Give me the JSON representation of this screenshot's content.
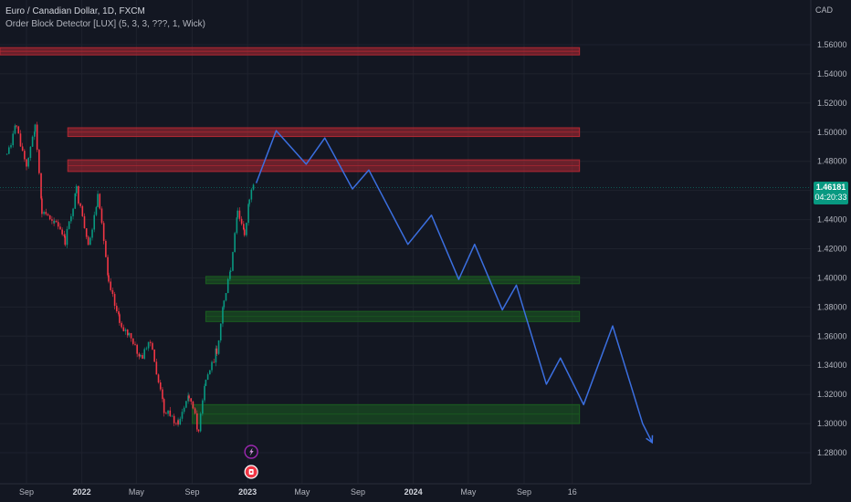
{
  "header": {
    "symbol": "Euro / Canadian Dollar, 1D, FXCM",
    "indicator": "Order Block Detector [LUX] (5, 3, 3, ???, 1, Wick)"
  },
  "currency": "CAD",
  "last_price": {
    "price": "1.46181",
    "countdown": "04:20:33"
  },
  "colors": {
    "background": "#131722",
    "bearish_zone": "#b22833",
    "bullish_zone": "#1b5e20",
    "projection": "#3b6fe0",
    "candle_up": "#089981",
    "candle_down": "#f23645"
  },
  "chart_data": {
    "type": "candlestick",
    "y_axis": {
      "range": [
        1.27,
        1.575
      ],
      "ticks": [
        "1.28000",
        "1.30000",
        "1.32000",
        "1.34000",
        "1.36000",
        "1.38000",
        "1.40000",
        "1.42000",
        "1.44000",
        "1.46000",
        "1.48000",
        "1.50000",
        "1.52000",
        "1.54000",
        "1.56000"
      ]
    },
    "x_axis": {
      "ticks": [
        {
          "label": "Sep",
          "date": "2021-09"
        },
        {
          "label": "2022",
          "date": "2022-01",
          "bold": true
        },
        {
          "label": "May",
          "date": "2022-05"
        },
        {
          "label": "Sep",
          "date": "2022-09"
        },
        {
          "label": "2023",
          "date": "2023-01",
          "bold": true
        },
        {
          "label": "May",
          "date": "2023-05"
        },
        {
          "label": "Sep",
          "date": "2023-09"
        },
        {
          "label": "2024",
          "date": "2024-01",
          "bold": true
        },
        {
          "label": "May",
          "date": "2024-05"
        },
        {
          "label": "Sep",
          "date": "2024-09"
        },
        {
          "label": "16",
          "date": "2024-12-16"
        }
      ]
    },
    "bearish_order_blocks": [
      {
        "from_date": "2021-07",
        "to_date": "2025-01",
        "top": 1.558,
        "bottom": 1.553
      },
      {
        "from_date": "2021-12",
        "to_date": "2025-01",
        "top": 1.503,
        "bottom": 1.497
      },
      {
        "from_date": "2021-12",
        "to_date": "2025-01",
        "top": 1.481,
        "bottom": 1.473
      }
    ],
    "bullish_order_blocks": [
      {
        "from_date": "2022-10",
        "to_date": "2025-01",
        "top": 1.401,
        "bottom": 1.396
      },
      {
        "from_date": "2022-10",
        "to_date": "2025-01",
        "top": 1.377,
        "bottom": 1.37
      },
      {
        "from_date": "2022-09",
        "to_date": "2025-01",
        "top": 1.313,
        "bottom": 1.3
      }
    ],
    "price_path": [
      {
        "date": "2021-07-20",
        "value": 1.485
      },
      {
        "date": "2021-08-10",
        "value": 1.505
      },
      {
        "date": "2021-09-01",
        "value": 1.475
      },
      {
        "date": "2021-09-20",
        "value": 1.505
      },
      {
        "date": "2021-10-05",
        "value": 1.445
      },
      {
        "date": "2021-11-01",
        "value": 1.44
      },
      {
        "date": "2021-11-25",
        "value": 1.425
      },
      {
        "date": "2021-12-20",
        "value": 1.46
      },
      {
        "date": "2022-01-15",
        "value": 1.42
      },
      {
        "date": "2022-02-05",
        "value": 1.455
      },
      {
        "date": "2022-03-01",
        "value": 1.4
      },
      {
        "date": "2022-03-25",
        "value": 1.37
      },
      {
        "date": "2022-04-15",
        "value": 1.36
      },
      {
        "date": "2022-05-10",
        "value": 1.345
      },
      {
        "date": "2022-06-01",
        "value": 1.355
      },
      {
        "date": "2022-07-01",
        "value": 1.31
      },
      {
        "date": "2022-08-01",
        "value": 1.3
      },
      {
        "date": "2022-08-25",
        "value": 1.32
      },
      {
        "date": "2022-09-15",
        "value": 1.295
      },
      {
        "date": "2022-10-01",
        "value": 1.33
      },
      {
        "date": "2022-10-25",
        "value": 1.35
      },
      {
        "date": "2022-11-10",
        "value": 1.385
      },
      {
        "date": "2022-11-25",
        "value": 1.405
      },
      {
        "date": "2022-12-10",
        "value": 1.445
      },
      {
        "date": "2022-12-25",
        "value": 1.43
      },
      {
        "date": "2023-01-05",
        "value": 1.455
      },
      {
        "date": "2023-01-15",
        "value": 1.462
      }
    ],
    "last_close": 1.46181,
    "projection": [
      {
        "date": "2023-01-20",
        "value": 1.465
      },
      {
        "date": "2023-03-05",
        "value": 1.501
      },
      {
        "date": "2023-05-10",
        "value": 1.478
      },
      {
        "date": "2023-06-20",
        "value": 1.496
      },
      {
        "date": "2023-08-20",
        "value": 1.461
      },
      {
        "date": "2023-09-25",
        "value": 1.474
      },
      {
        "date": "2023-12-20",
        "value": 1.423
      },
      {
        "date": "2024-02-10",
        "value": 1.443
      },
      {
        "date": "2024-04-10",
        "value": 1.399
      },
      {
        "date": "2024-05-15",
        "value": 1.423
      },
      {
        "date": "2024-07-15",
        "value": 1.378
      },
      {
        "date": "2024-08-15",
        "value": 1.395
      },
      {
        "date": "2024-10-20",
        "value": 1.327
      },
      {
        "date": "2024-11-20",
        "value": 1.345
      },
      {
        "date": "2025-01-10",
        "value": 1.313
      },
      {
        "date": "2025-03-15",
        "value": 1.367
      },
      {
        "date": "2025-05-20",
        "value": 1.3
      },
      {
        "date": "2025-06-10",
        "value": 1.287
      }
    ],
    "event_markers": [
      {
        "date": "2023-01",
        "icon": "lightning-icon"
      },
      {
        "date": "2023-01",
        "icon": "flag-icon"
      }
    ]
  }
}
